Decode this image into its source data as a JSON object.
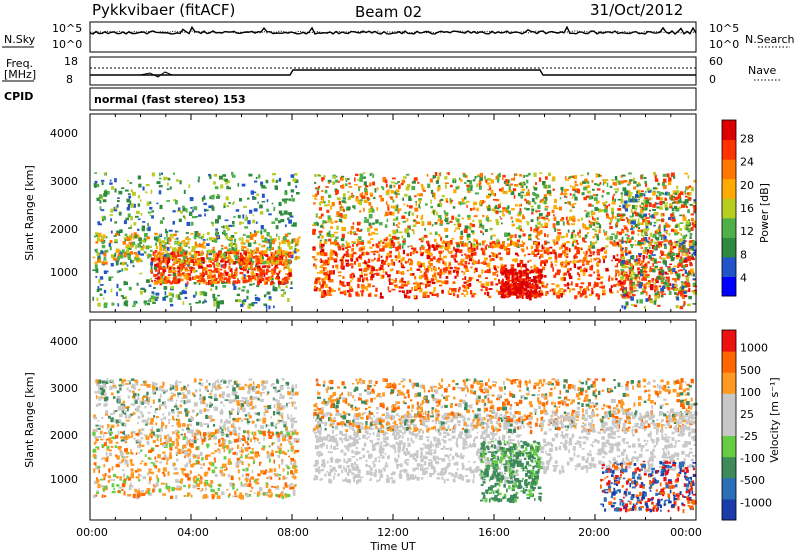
{
  "header": {
    "station": "Pykkvibaer (fitACF)",
    "beam": "Beam 02",
    "date": "31/Oct/2012"
  },
  "status_panels": {
    "nsky_label": "N.Sky",
    "nsky_ticks": [
      "10^5",
      "10^0"
    ],
    "nsearch_label": "N.Search",
    "nsearch_ticks": [
      "10^5",
      "10^0"
    ],
    "freq_label_1": "Freq.",
    "freq_label_2": "[MHz]",
    "freq_ticks": [
      "18",
      "8"
    ],
    "nave_label": "Nave",
    "nave_ticks": [
      "60",
      "0"
    ],
    "cpid_label": "CPID",
    "cpid_value": "normal (fast stereo) 153"
  },
  "chart_data": [
    {
      "type": "heatmap",
      "name": "power",
      "ylabel": "Slant Range [km]",
      "yticks": [
        "4000",
        "3000",
        "2000",
        "1000"
      ],
      "ylim": [
        180,
        4500
      ],
      "xlim_hours": [
        0,
        24
      ],
      "colorbar_label": "Power [dB]",
      "colorbar_ticks": [
        "28",
        "24",
        "20",
        "16",
        "12",
        "8",
        "4"
      ],
      "colorbar_colors": [
        "#0000ff",
        "#2255c8",
        "#2e8a3e",
        "#4fb04a",
        "#b8cc22",
        "#ffaa00",
        "#ff7700",
        "#ff3300",
        "#dd0000"
      ]
    },
    {
      "type": "heatmap",
      "name": "velocity",
      "ylabel": "Slant Range [km]",
      "yticks": [
        "4000",
        "3000",
        "2000",
        "1000"
      ],
      "ylim": [
        180,
        4500
      ],
      "xlim_hours": [
        0,
        24
      ],
      "colorbar_label": "Velocity [m s⁻¹]",
      "colorbar_ticks": [
        "1000",
        "500",
        "100",
        "25",
        "-25",
        "-100",
        "-500",
        "-1000"
      ],
      "colorbar_colors": [
        "#1a3caa",
        "#2a6fb8",
        "#3e8a5a",
        "#66cc44",
        "#c8c8c8",
        "#c8c8c8",
        "#ff9922",
        "#ff6600",
        "#ee1111"
      ]
    }
  ],
  "time_axis": {
    "ticks": [
      "00:00",
      "04:00",
      "08:00",
      "12:00",
      "16:00",
      "20:00",
      "00:00"
    ],
    "label": "Time UT"
  }
}
